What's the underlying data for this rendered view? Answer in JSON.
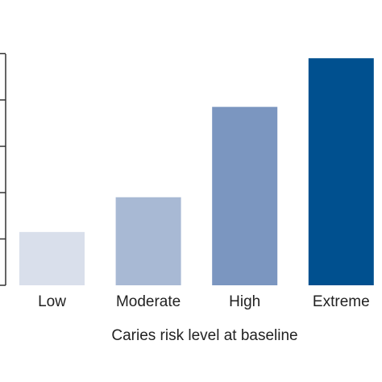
{
  "chart_data": {
    "type": "bar",
    "categories": [
      "Low",
      "Moderate",
      "High",
      "Extreme"
    ],
    "values": [
      11.5,
      19,
      38.5,
      49
    ],
    "colors": [
      "#d9dfeb",
      "#a8b9d4",
      "#7b96c0",
      "#00508f"
    ],
    "title": "",
    "xlabel": "Caries risk level at baseline",
    "ylabel": "",
    "ylim": [
      0,
      50
    ],
    "y_tick_step": 10,
    "y_tick_labels_visible": false,
    "grid": false,
    "legend": "none"
  }
}
